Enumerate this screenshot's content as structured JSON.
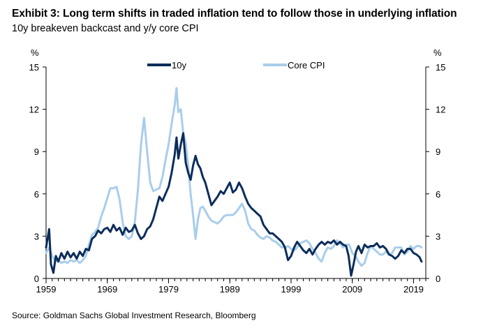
{
  "title": "Exhibit 3: Long term shifts in traded inflation tend to follow those in underlying inflation",
  "subtitle": "10y breakeven backcast and y/y core CPI",
  "source": "Source: Goldman Sachs Global Investment Research, Bloomberg",
  "colors": {
    "ten_year": "#0b2d5b",
    "core_cpi": "#a9cdeb",
    "axis": "#000000"
  },
  "chart_data": {
    "type": "line",
    "ylabel_left": "%",
    "ylabel_right": "%",
    "xlim": [
      1959,
      2021
    ],
    "ylim": [
      0,
      15
    ],
    "yticks": [
      0,
      3,
      6,
      9,
      12,
      15
    ],
    "xticks": [
      1959,
      1969,
      1979,
      1989,
      1999,
      2009,
      2019
    ],
    "grid": false,
    "legend": "top-center",
    "series": [
      {
        "name": "10y",
        "color": "#0b2d5b",
        "points": [
          [
            1959.0,
            2.2
          ],
          [
            1959.5,
            3.5
          ],
          [
            1959.8,
            1.0
          ],
          [
            1960.2,
            0.4
          ],
          [
            1960.6,
            1.6
          ],
          [
            1961.0,
            1.2
          ],
          [
            1961.5,
            1.8
          ],
          [
            1962.0,
            1.4
          ],
          [
            1962.5,
            1.9
          ],
          [
            1963.0,
            1.5
          ],
          [
            1963.5,
            1.8
          ],
          [
            1964.0,
            1.4
          ],
          [
            1964.5,
            1.9
          ],
          [
            1965.0,
            1.6
          ],
          [
            1965.5,
            2.1
          ],
          [
            1966.0,
            2.0
          ],
          [
            1966.5,
            2.8
          ],
          [
            1967.0,
            3.0
          ],
          [
            1967.5,
            3.4
          ],
          [
            1968.0,
            3.2
          ],
          [
            1968.5,
            3.5
          ],
          [
            1969.0,
            3.6
          ],
          [
            1969.5,
            3.3
          ],
          [
            1970.0,
            3.8
          ],
          [
            1970.5,
            3.4
          ],
          [
            1971.0,
            3.6
          ],
          [
            1971.5,
            3.1
          ],
          [
            1972.0,
            3.6
          ],
          [
            1972.5,
            3.3
          ],
          [
            1973.0,
            3.4
          ],
          [
            1973.5,
            3.8
          ],
          [
            1974.0,
            3.2
          ],
          [
            1974.5,
            2.8
          ],
          [
            1975.0,
            3.0
          ],
          [
            1975.5,
            3.5
          ],
          [
            1976.0,
            3.7
          ],
          [
            1976.5,
            4.2
          ],
          [
            1977.0,
            5.0
          ],
          [
            1977.5,
            5.8
          ],
          [
            1978.0,
            5.5
          ],
          [
            1978.5,
            6.0
          ],
          [
            1979.0,
            6.5
          ],
          [
            1979.5,
            7.5
          ],
          [
            1980.0,
            8.8
          ],
          [
            1980.3,
            10.0
          ],
          [
            1980.6,
            8.5
          ],
          [
            1981.0,
            9.5
          ],
          [
            1981.4,
            10.3
          ],
          [
            1981.8,
            8.2
          ],
          [
            1982.2,
            7.5
          ],
          [
            1982.6,
            7.0
          ],
          [
            1983.0,
            8.0
          ],
          [
            1983.4,
            8.7
          ],
          [
            1983.8,
            8.1
          ],
          [
            1984.2,
            7.8
          ],
          [
            1984.6,
            7.2
          ],
          [
            1985.0,
            6.8
          ],
          [
            1985.5,
            6.0
          ],
          [
            1986.0,
            5.2
          ],
          [
            1986.5,
            5.5
          ],
          [
            1987.0,
            5.8
          ],
          [
            1987.5,
            6.2
          ],
          [
            1988.0,
            6.0
          ],
          [
            1988.5,
            6.4
          ],
          [
            1989.0,
            6.8
          ],
          [
            1989.5,
            6.1
          ],
          [
            1990.0,
            6.3
          ],
          [
            1990.5,
            6.8
          ],
          [
            1991.0,
            6.4
          ],
          [
            1991.5,
            5.8
          ],
          [
            1992.0,
            5.3
          ],
          [
            1992.5,
            5.0
          ],
          [
            1993.0,
            4.8
          ],
          [
            1993.5,
            4.6
          ],
          [
            1994.0,
            4.4
          ],
          [
            1994.5,
            3.8
          ],
          [
            1995.0,
            3.5
          ],
          [
            1995.5,
            3.2
          ],
          [
            1996.0,
            3.2
          ],
          [
            1996.5,
            3.0
          ],
          [
            1997.0,
            2.8
          ],
          [
            1997.5,
            2.6
          ],
          [
            1998.0,
            2.2
          ],
          [
            1998.5,
            1.3
          ],
          [
            1999.0,
            1.6
          ],
          [
            1999.5,
            2.2
          ],
          [
            2000.0,
            2.6
          ],
          [
            2000.5,
            2.3
          ],
          [
            2001.0,
            2.0
          ],
          [
            2001.5,
            1.8
          ],
          [
            2002.0,
            2.1
          ],
          [
            2002.5,
            1.7
          ],
          [
            2003.0,
            2.1
          ],
          [
            2003.5,
            2.4
          ],
          [
            2004.0,
            2.6
          ],
          [
            2004.5,
            2.4
          ],
          [
            2005.0,
            2.6
          ],
          [
            2005.5,
            2.5
          ],
          [
            2006.0,
            2.7
          ],
          [
            2006.5,
            2.4
          ],
          [
            2007.0,
            2.6
          ],
          [
            2007.5,
            2.4
          ],
          [
            2008.0,
            2.3
          ],
          [
            2008.4,
            1.6
          ],
          [
            2008.8,
            0.2
          ],
          [
            2009.2,
            1.0
          ],
          [
            2009.6,
            1.9
          ],
          [
            2010.0,
            2.3
          ],
          [
            2010.5,
            1.8
          ],
          [
            2011.0,
            2.4
          ],
          [
            2011.5,
            2.2
          ],
          [
            2012.0,
            2.3
          ],
          [
            2012.5,
            2.3
          ],
          [
            2013.0,
            2.5
          ],
          [
            2013.5,
            2.2
          ],
          [
            2014.0,
            2.3
          ],
          [
            2014.5,
            2.1
          ],
          [
            2015.0,
            1.7
          ],
          [
            2015.5,
            1.6
          ],
          [
            2016.0,
            1.4
          ],
          [
            2016.5,
            1.6
          ],
          [
            2017.0,
            2.0
          ],
          [
            2017.5,
            1.8
          ],
          [
            2018.0,
            2.1
          ],
          [
            2018.5,
            2.1
          ],
          [
            2019.0,
            1.8
          ],
          [
            2019.5,
            1.7
          ],
          [
            2020.0,
            1.5
          ],
          [
            2020.3,
            1.2
          ]
        ]
      },
      {
        "name": "Core CPI",
        "color": "#a9cdeb",
        "points": [
          [
            1959.0,
            1.8
          ],
          [
            1959.5,
            2.2
          ],
          [
            1960.0,
            1.6
          ],
          [
            1960.5,
            1.2
          ],
          [
            1961.0,
            1.3
          ],
          [
            1961.5,
            1.1
          ],
          [
            1962.0,
            1.2
          ],
          [
            1962.5,
            1.1
          ],
          [
            1963.0,
            1.3
          ],
          [
            1963.5,
            1.2
          ],
          [
            1964.0,
            1.3
          ],
          [
            1964.5,
            1.1
          ],
          [
            1965.0,
            1.3
          ],
          [
            1965.5,
            1.6
          ],
          [
            1966.0,
            2.4
          ],
          [
            1966.5,
            3.1
          ],
          [
            1967.0,
            3.3
          ],
          [
            1967.5,
            3.6
          ],
          [
            1968.0,
            4.4
          ],
          [
            1968.5,
            5.0
          ],
          [
            1969.0,
            5.7
          ],
          [
            1969.5,
            6.4
          ],
          [
            1970.0,
            6.4
          ],
          [
            1970.5,
            6.5
          ],
          [
            1971.0,
            5.6
          ],
          [
            1971.5,
            4.0
          ],
          [
            1972.0,
            3.0
          ],
          [
            1972.5,
            2.8
          ],
          [
            1973.0,
            3.0
          ],
          [
            1973.5,
            4.0
          ],
          [
            1974.0,
            6.3
          ],
          [
            1974.5,
            9.5
          ],
          [
            1975.0,
            11.4
          ],
          [
            1975.5,
            9.0
          ],
          [
            1976.0,
            6.8
          ],
          [
            1976.5,
            6.2
          ],
          [
            1977.0,
            6.3
          ],
          [
            1977.5,
            6.4
          ],
          [
            1978.0,
            7.2
          ],
          [
            1978.5,
            8.4
          ],
          [
            1979.0,
            9.5
          ],
          [
            1979.5,
            11.0
          ],
          [
            1980.0,
            12.3
          ],
          [
            1980.3,
            13.5
          ],
          [
            1980.6,
            11.8
          ],
          [
            1981.0,
            12.0
          ],
          [
            1981.4,
            10.3
          ],
          [
            1981.8,
            9.6
          ],
          [
            1982.2,
            8.0
          ],
          [
            1982.6,
            6.0
          ],
          [
            1983.0,
            4.5
          ],
          [
            1983.4,
            2.8
          ],
          [
            1983.8,
            4.2
          ],
          [
            1984.2,
            5.0
          ],
          [
            1984.6,
            5.1
          ],
          [
            1985.0,
            4.8
          ],
          [
            1985.5,
            4.4
          ],
          [
            1986.0,
            4.1
          ],
          [
            1986.5,
            4.0
          ],
          [
            1987.0,
            3.9
          ],
          [
            1987.5,
            4.1
          ],
          [
            1988.0,
            4.4
          ],
          [
            1988.5,
            4.5
          ],
          [
            1989.0,
            4.5
          ],
          [
            1989.5,
            4.5
          ],
          [
            1990.0,
            4.7
          ],
          [
            1990.5,
            5.0
          ],
          [
            1991.0,
            5.3
          ],
          [
            1991.5,
            4.8
          ],
          [
            1992.0,
            3.9
          ],
          [
            1992.5,
            3.5
          ],
          [
            1993.0,
            3.4
          ],
          [
            1993.5,
            3.1
          ],
          [
            1994.0,
            2.9
          ],
          [
            1994.5,
            2.8
          ],
          [
            1995.0,
            3.0
          ],
          [
            1995.5,
            2.9
          ],
          [
            1996.0,
            2.7
          ],
          [
            1996.5,
            2.6
          ],
          [
            1997.0,
            2.4
          ],
          [
            1997.5,
            2.2
          ],
          [
            1998.0,
            2.2
          ],
          [
            1998.5,
            2.3
          ],
          [
            1999.0,
            2.1
          ],
          [
            1999.5,
            2.0
          ],
          [
            2000.0,
            2.2
          ],
          [
            2000.5,
            2.5
          ],
          [
            2001.0,
            2.6
          ],
          [
            2001.5,
            2.7
          ],
          [
            2002.0,
            2.5
          ],
          [
            2002.5,
            2.1
          ],
          [
            2003.0,
            1.8
          ],
          [
            2003.5,
            1.4
          ],
          [
            2004.0,
            1.2
          ],
          [
            2004.5,
            1.8
          ],
          [
            2005.0,
            2.2
          ],
          [
            2005.5,
            2.1
          ],
          [
            2006.0,
            2.3
          ],
          [
            2006.5,
            2.7
          ],
          [
            2007.0,
            2.5
          ],
          [
            2007.5,
            2.2
          ],
          [
            2008.0,
            2.4
          ],
          [
            2008.5,
            2.4
          ],
          [
            2009.0,
            1.8
          ],
          [
            2009.5,
            1.6
          ],
          [
            2010.0,
            1.2
          ],
          [
            2010.5,
            0.9
          ],
          [
            2011.0,
            1.1
          ],
          [
            2011.5,
            1.8
          ],
          [
            2012.0,
            2.3
          ],
          [
            2012.5,
            2.1
          ],
          [
            2013.0,
            1.9
          ],
          [
            2013.5,
            1.7
          ],
          [
            2014.0,
            1.7
          ],
          [
            2014.5,
            1.9
          ],
          [
            2015.0,
            1.7
          ],
          [
            2015.5,
            1.8
          ],
          [
            2016.0,
            2.2
          ],
          [
            2016.5,
            2.2
          ],
          [
            2017.0,
            2.2
          ],
          [
            2017.5,
            1.7
          ],
          [
            2018.0,
            1.9
          ],
          [
            2018.5,
            2.3
          ],
          [
            2019.0,
            2.1
          ],
          [
            2019.5,
            2.3
          ],
          [
            2020.0,
            2.3
          ],
          [
            2020.3,
            2.2
          ]
        ]
      }
    ]
  }
}
